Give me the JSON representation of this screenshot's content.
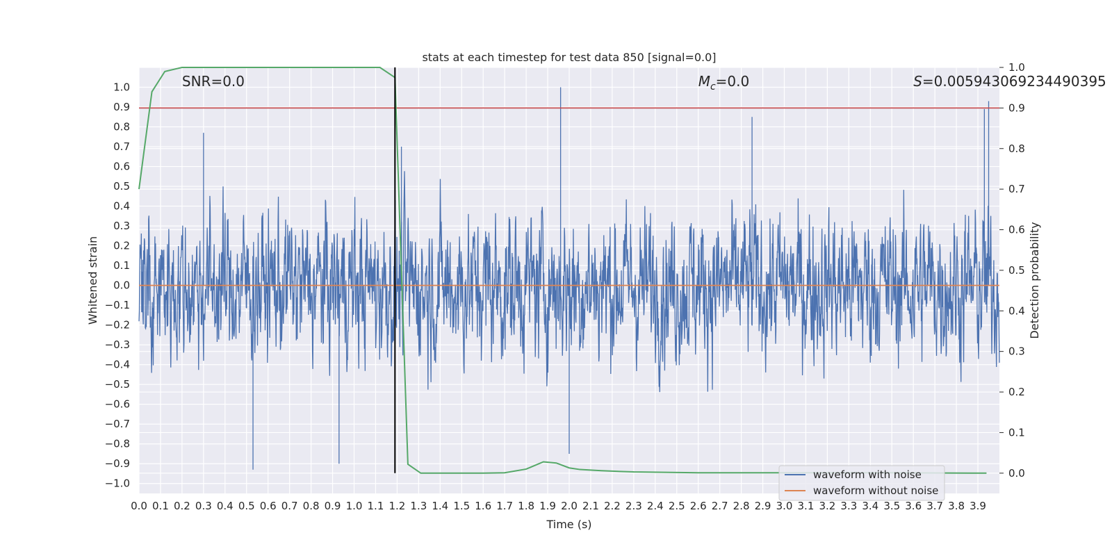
{
  "chart_data": {
    "type": "line",
    "title": "stats at each timestep for test data 850 [signal=0.0]",
    "xlabel": "Time (s)",
    "ylabel": "Whitened strain",
    "ylabel_right": "Detection probability",
    "xlim": [
      0.0,
      4.0
    ],
    "ylim": [
      -1.05,
      1.1
    ],
    "ylim_right": [
      -0.05,
      1.0
    ],
    "x_ticks": [
      "0.0",
      "0.1",
      "0.2",
      "0.3",
      "0.4",
      "0.5",
      "0.6",
      "0.7",
      "0.8",
      "0.9",
      "1.0",
      "1.1",
      "1.2",
      "1.3",
      "1.4",
      "1.5",
      "1.6",
      "1.7",
      "1.8",
      "1.9",
      "2.0",
      "2.1",
      "2.2",
      "2.3",
      "2.4",
      "2.5",
      "2.6",
      "2.7",
      "2.8",
      "2.9",
      "3.0",
      "3.1",
      "3.2",
      "3.3",
      "3.4",
      "3.5",
      "3.6",
      "3.7",
      "3.8",
      "3.9"
    ],
    "y_ticks": [
      "1.0",
      "0.9",
      "0.8",
      "0.7",
      "0.6",
      "0.5",
      "0.4",
      "0.3",
      "0.2",
      "0.1",
      "0.0",
      "−0.1",
      "−0.2",
      "−0.3",
      "−0.4",
      "−0.5",
      "−0.6",
      "−0.7",
      "−0.8",
      "−0.9",
      "−1.0"
    ],
    "y_right_ticks": [
      "1.0",
      "0.9",
      "0.8",
      "0.7",
      "0.6",
      "0.5",
      "0.4",
      "0.3",
      "0.2",
      "0.1",
      "0.0"
    ],
    "grid": true,
    "legend_position": "bottom-right",
    "annotations": {
      "snr": "SNR=0.0",
      "mc_symbol": "M",
      "mc_sub": "c",
      "mc_value": "=0.0",
      "s_symbol": "S",
      "s_value": "=0.005943069234490395"
    },
    "series": [
      {
        "name": "waveform with noise",
        "axis": "left",
        "color": "#4c72b0",
        "style": "dense noise, roughly uniform amplitude, most peaks within ±0.6, occasional spikes",
        "amplitude_typical": 0.45,
        "peaks": [
          {
            "x": 0.3,
            "y": 0.77
          },
          {
            "x": 0.53,
            "y": -0.93
          },
          {
            "x": 0.93,
            "y": -0.9
          },
          {
            "x": 1.22,
            "y": 0.7
          },
          {
            "x": 1.96,
            "y": 1.0
          },
          {
            "x": 2.0,
            "y": -0.85
          },
          {
            "x": 2.85,
            "y": 0.85
          },
          {
            "x": 3.95,
            "y": 0.93
          },
          {
            "x": 3.93,
            "y": 0.89
          }
        ]
      },
      {
        "name": "waveform without noise",
        "axis": "left",
        "color": "#dd8452",
        "x": [
          0.0,
          4.0
        ],
        "y": [
          0.0,
          0.0
        ]
      },
      {
        "name": "",
        "axis": "right",
        "color": "#55a868",
        "x": [
          0.0,
          0.06,
          0.12,
          0.2,
          0.3,
          0.5,
          0.8,
          1.0,
          1.12,
          1.19,
          1.25,
          1.31,
          1.4,
          1.6,
          1.7,
          1.8,
          1.88,
          1.94,
          2.0,
          2.05,
          2.15,
          2.3,
          2.6,
          3.0,
          3.5,
          3.94
        ],
        "y": [
          0.7,
          0.94,
          0.99,
          1.0,
          1.0,
          1.0,
          1.0,
          1.0,
          1.0,
          0.975,
          0.022,
          0.0,
          0.0,
          0.0,
          0.001,
          0.01,
          0.028,
          0.025,
          0.013,
          0.009,
          0.006,
          0.003,
          0.001,
          0.001,
          0.001,
          0.0
        ]
      },
      {
        "name": "",
        "axis": "right",
        "color": "#c44e52",
        "x": [
          0.0,
          4.0
        ],
        "y": [
          0.9,
          0.9
        ]
      }
    ],
    "vertical_line": {
      "x": 1.19,
      "y_from_right": 0.0,
      "y_to_right": 1.0,
      "color": "#000000"
    }
  }
}
